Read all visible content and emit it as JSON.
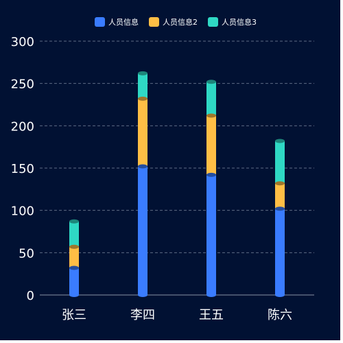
{
  "chart_data": {
    "type": "bar",
    "stacked": true,
    "categories": [
      "张三",
      "李四",
      "王五",
      "陈六"
    ],
    "series": [
      {
        "name": "人员信息",
        "values": [
          32,
          152,
          142,
          102
        ],
        "color": "#3a7cff"
      },
      {
        "name": "人员信息2",
        "values": [
          25,
          80,
          70,
          30
        ],
        "color": "#ffbe45"
      },
      {
        "name": "人员信息3",
        "values": [
          30,
          30,
          40,
          50
        ],
        "color": "#2fd8c4"
      }
    ],
    "ylim": [
      0,
      300
    ],
    "yticks": [
      0,
      50,
      100,
      150,
      200,
      250,
      300
    ],
    "grid": true,
    "legend_position": "top-center",
    "background": "#011133"
  }
}
